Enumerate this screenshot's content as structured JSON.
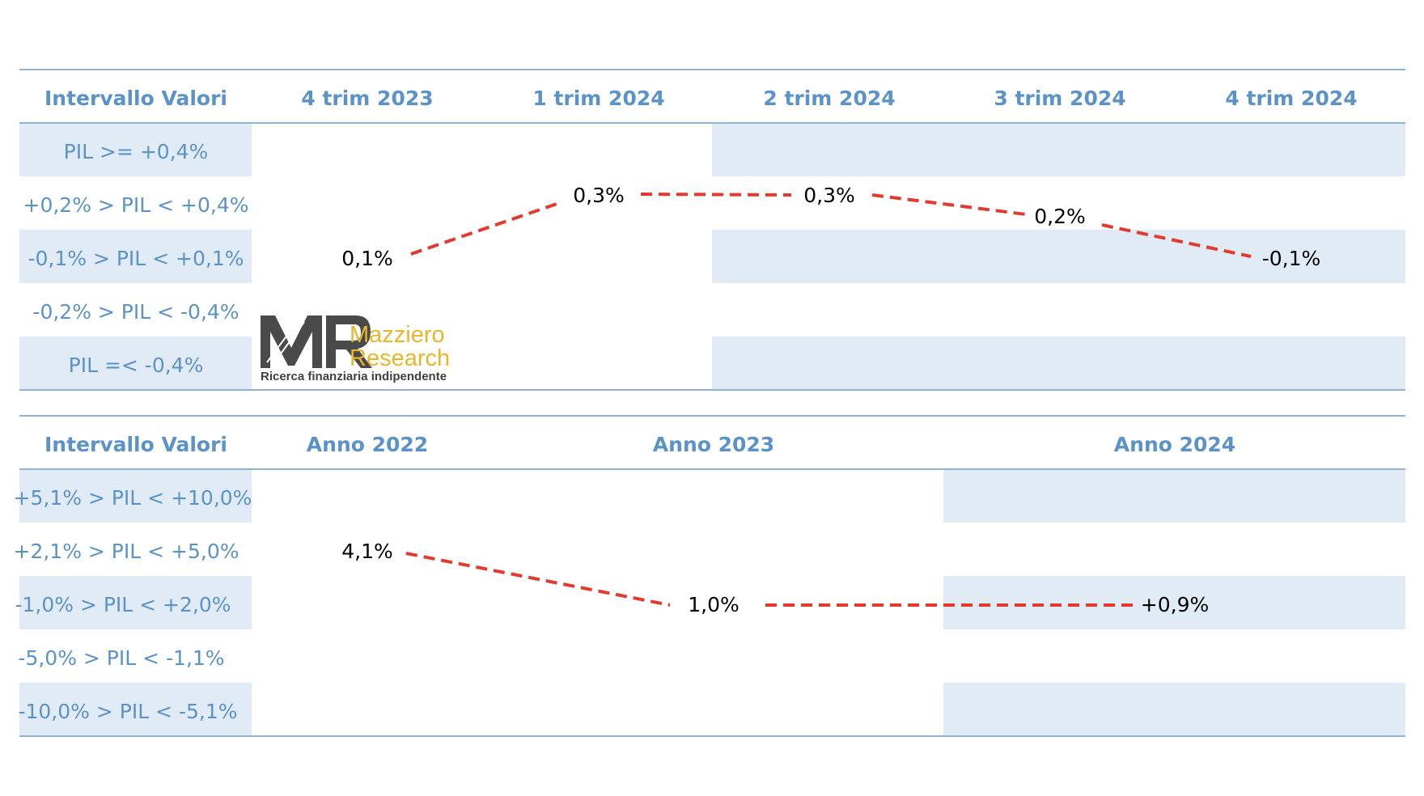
{
  "colors": {
    "header_text": "#5b93c9",
    "band_fill": "#e1ebf6",
    "rule": "#8fb2d8",
    "connector": "#e23b2e",
    "logo_text": "#e9b62b"
  },
  "logo": {
    "mark": "MR",
    "name_line1": "Mazziero",
    "name_line2": "Research",
    "tagline": "Ricerca finanziaria indipendente"
  },
  "chart_data": [
    {
      "type": "table",
      "row_header": "Intervallo Valori",
      "categories": [
        "4 trim 2023",
        "1 trim 2024",
        "2 trim 2024",
        "3 trim 2024",
        "4 trim 2024"
      ],
      "ranges": [
        "PIL >= +0,4%",
        "+0,2% > PIL < +0,4%",
        "-0,1% > PIL < +0,1%",
        "-0,2% > PIL < -0,4%",
        "PIL =< -0,4%"
      ],
      "values": [
        0.1,
        0.3,
        0.3,
        0.2,
        -0.1
      ],
      "value_labels": [
        "0,1%",
        "0,3%",
        "0,3%",
        "0,2%",
        "-0,1%"
      ]
    },
    {
      "type": "table",
      "row_header": "Intervallo Valori",
      "categories": [
        "Anno 2022",
        "Anno 2023",
        "Anno 2024"
      ],
      "ranges": [
        "+5,1% > PIL < +10,0%",
        "+2,1% > PIL < +5,0%",
        "-1,0% > PIL < +2,0%",
        "-5,0% > PIL < -1,1%",
        "-10,0% > PIL < -5,1%"
      ],
      "values": [
        4.1,
        1.0,
        0.9
      ],
      "value_labels": [
        "4,1%",
        "1,0%",
        "+0,9%"
      ]
    }
  ]
}
